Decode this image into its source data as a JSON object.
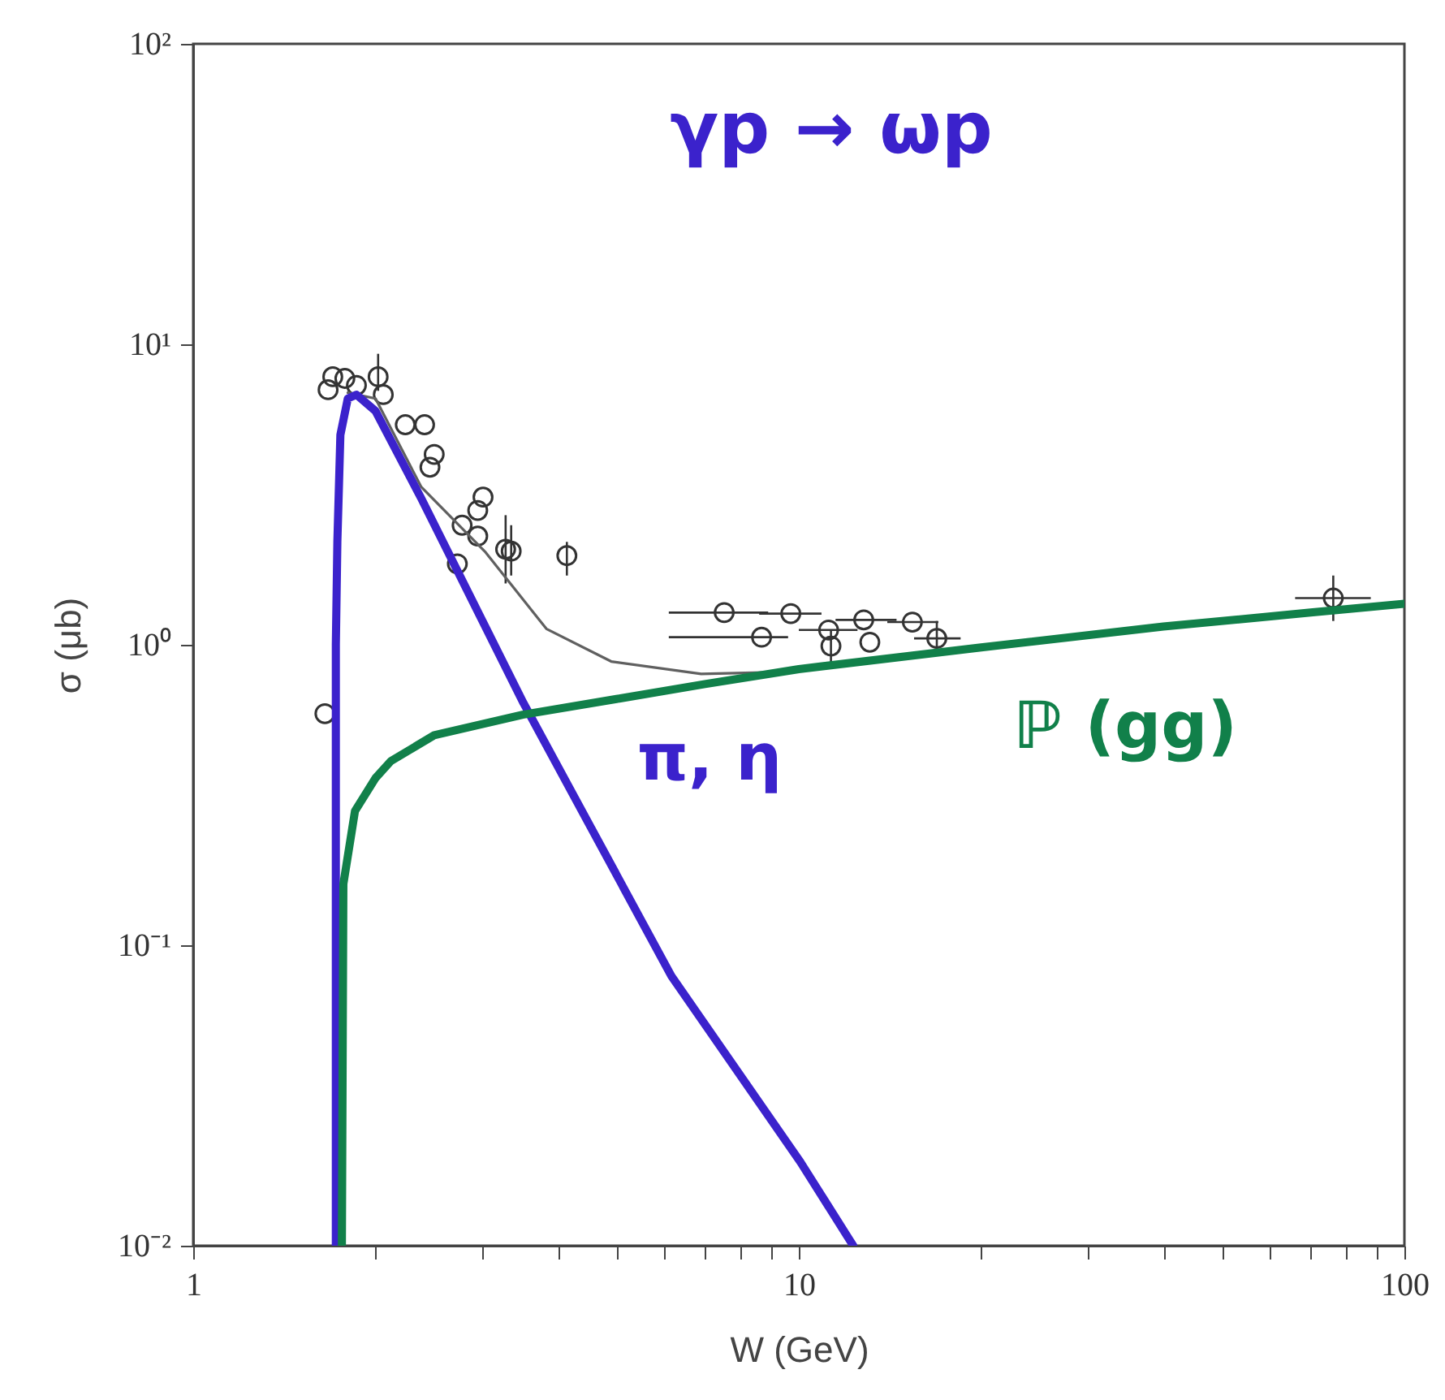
{
  "chart_data": {
    "type": "scatter",
    "title": "γp → ωp",
    "xlabel": "W (GeV)",
    "ylabel": "σ (μb)",
    "log": "xy",
    "xlim": [
      1,
      100
    ],
    "ylim": [
      0.01,
      100
    ],
    "xticks": [
      1,
      {
        "value": 2,
        "label": null
      },
      {
        "value": 3,
        "label": null
      },
      {
        "value": 4,
        "label": null
      },
      {
        "value": 5,
        "label": null
      },
      {
        "value": 6,
        "label": null
      },
      {
        "value": 7,
        "label": null
      },
      {
        "value": 8,
        "label": null
      },
      {
        "value": 9,
        "label": null
      },
      10,
      {
        "value": 20,
        "label": null
      },
      {
        "value": 30,
        "label": null
      },
      {
        "value": 40,
        "label": null
      },
      {
        "value": 50,
        "label": null
      },
      {
        "value": 60,
        "label": null
      },
      {
        "value": 70,
        "label": null
      },
      {
        "value": 80,
        "label": null
      },
      {
        "value": 90,
        "label": null
      },
      100
    ],
    "yticks": [
      {
        "value": 0.01,
        "label": "10⁻²"
      },
      {
        "value": 0.1,
        "label": "10⁻¹"
      },
      {
        "value": 1,
        "label": "10⁰"
      },
      {
        "value": 10,
        "label": "10¹"
      },
      {
        "value": 100,
        "label": "10²"
      }
    ],
    "grid": false,
    "series": [
      {
        "marker": "circle",
        "color": "#333333",
        "x": [
          1.65,
          1.67,
          1.7,
          1.78,
          1.86,
          2.02,
          2.06,
          2.24,
          2.41,
          2.46,
          2.5,
          2.73,
          2.78,
          2.95,
          2.95,
          3.01,
          3.28,
          3.35,
          4.14,
          7.53,
          8.68,
          9.7,
          11.2,
          11.3,
          12.8,
          13.1,
          15.4,
          16.9,
          76.3
        ],
        "values": [
          0.59,
          7.06,
          7.8,
          7.7,
          7.3,
          7.8,
          6.8,
          5.4,
          5.4,
          3.9,
          4.3,
          1.86,
          2.5,
          2.3,
          2.8,
          3.1,
          2.08,
          2.05,
          1.98,
          1.28,
          1.06,
          1.27,
          1.12,
          0.99,
          1.21,
          1.02,
          1.19,
          1.05,
          1.43
        ],
        "errors": [
          null,
          null,
          null,
          null,
          null,
          [
            7.0,
            9.3
          ],
          null,
          null,
          null,
          null,
          null,
          null,
          null,
          null,
          null,
          null,
          [
            1.6,
            2.7
          ],
          [
            1.7,
            2.5
          ],
          [
            1.7,
            2.2
          ],
          null,
          null,
          null,
          null,
          [
            0.87,
            1.12
          ],
          null,
          null,
          null,
          [
            0.92,
            1.2
          ],
          [
            1.2,
            1.7
          ]
        ],
        "xerrors": [
          null,
          null,
          null,
          null,
          null,
          null,
          null,
          null,
          null,
          null,
          null,
          null,
          null,
          null,
          null,
          null,
          null,
          null,
          null,
          [
            6.1,
            8.9
          ],
          [
            6.1,
            9.6
          ],
          [
            8.6,
            10.9
          ],
          [
            10.0,
            12.5
          ],
          null,
          [
            11.5,
            14.5
          ],
          null,
          [
            14.0,
            17.0
          ],
          [
            15.5,
            18.5
          ],
          [
            66,
            88
          ]
        ]
      },
      {
        "type": "line",
        "color": "#606060",
        "x": [
          1.8,
          2.0,
          2.38,
          3.04,
          3.83,
          4.9,
          6.9,
          9.0
        ],
        "values": [
          6.9,
          6.6,
          3.35,
          2.03,
          1.13,
          0.88,
          0.8,
          0.81
        ]
      },
      {
        "type": "line",
        "name": "π, η",
        "color": "#3b22cc",
        "x": [
          1.72,
          1.72,
          1.72,
          1.73,
          1.75,
          1.8,
          1.86,
          2.0,
          2.38,
          3.51,
          6.16,
          10.06,
          12.3
        ],
        "values": [
          0.01,
          0.1,
          1,
          2.2,
          5.0,
          6.6,
          6.8,
          6.0,
          3.07,
          0.64,
          0.079,
          0.019,
          0.01
        ]
      },
      {
        "type": "line",
        "name": "ℙ (gg)",
        "color": "#11804a",
        "x": [
          1.76,
          1.77,
          1.85,
          2.0,
          2.12,
          2.5,
          3.5,
          5,
          7,
          10,
          20,
          40,
          70,
          100
        ],
        "values": [
          0.01,
          0.16,
          0.28,
          0.36,
          0.41,
          0.5,
          0.585,
          0.66,
          0.74,
          0.83,
          0.98,
          1.15,
          1.28,
          1.37
        ]
      }
    ]
  }
}
